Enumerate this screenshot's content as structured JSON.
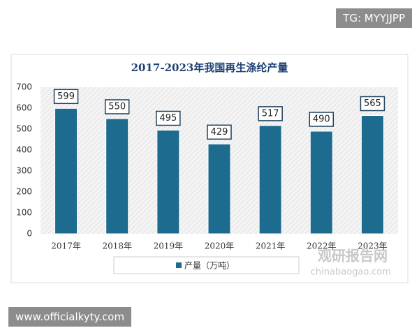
{
  "chart_data": {
    "type": "bar",
    "title": "2017-2023年我国再生涤纶产量",
    "categories": [
      "2017年",
      "2018年",
      "2019年",
      "2020年",
      "2021年",
      "2022年",
      "2023年"
    ],
    "series": [
      {
        "name": "产量（万吨）",
        "color": "#1d6b8e",
        "values": [
          599,
          550,
          495,
          429,
          517,
          490,
          565
        ]
      }
    ],
    "ylim": [
      0,
      700
    ],
    "yticks": [
      0,
      100,
      200,
      300,
      400,
      500,
      600,
      700
    ],
    "legend": "bottom"
  },
  "badges": {
    "top": "TG: MYYJJPP",
    "bottom": "www.officialkyty.com"
  },
  "watermark": {
    "name": "观研报告网",
    "url": "chinabaogao.com"
  }
}
